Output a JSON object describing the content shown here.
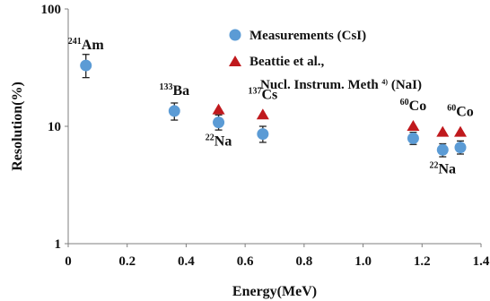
{
  "chart_data": {
    "type": "scatter",
    "title": "",
    "xlabel": "Energy(MeV)",
    "ylabel": "Resolution(%)",
    "xlim": [
      0,
      1.4
    ],
    "ylim": [
      1,
      100
    ],
    "y_scale": "log",
    "grid": false,
    "legend_position": "top-right",
    "x_ticks": [
      "0",
      "0.2",
      "0.4",
      "0.6",
      "0.8",
      "1.0",
      "1.2",
      "1.4"
    ],
    "y_ticks": [
      "1",
      "10",
      "100"
    ],
    "series": [
      {
        "name": "Measurements (CsI)",
        "marker": "circle",
        "color": "#5b9bd5",
        "x": [
          0.06,
          0.36,
          0.51,
          0.66,
          1.17,
          1.27,
          1.33
        ],
        "y": [
          33,
          13.5,
          10.8,
          8.6,
          7.9,
          6.3,
          6.6
        ],
        "yerr_low": [
          26,
          11.3,
          9.3,
          7.3,
          7.0,
          5.5,
          5.8
        ],
        "yerr_high": [
          41,
          15.8,
          12.5,
          10.0,
          8.9,
          7.1,
          7.5
        ]
      },
      {
        "name_lines": [
          "Beattie et al.,",
          "Nucl. Instrum. Meth ",
          "4)",
          " (NaI)"
        ],
        "marker": "triangle",
        "color": "#c0191d",
        "x": [
          0.51,
          0.66,
          1.17,
          1.27,
          1.33
        ],
        "y": [
          13.8,
          12.5,
          10.0,
          8.9,
          8.9
        ]
      }
    ],
    "annotations": [
      {
        "sup": "241",
        "text": "Am",
        "x": 0.06,
        "y": 33,
        "side": "above"
      },
      {
        "sup": "133",
        "text": "Ba",
        "x": 0.36,
        "y": 13.5,
        "side": "above"
      },
      {
        "sup": "22",
        "text": "Na",
        "x": 0.51,
        "y": 10.8,
        "side": "below"
      },
      {
        "sup": "137",
        "text": "Cs",
        "x": 0.66,
        "y": 12.5,
        "side": "above"
      },
      {
        "sup": "60",
        "text": "Co",
        "x": 1.17,
        "y": 10.0,
        "side": "above"
      },
      {
        "sup": "22",
        "text": "Na",
        "x": 1.27,
        "y": 6.3,
        "side": "below"
      },
      {
        "sup": "60",
        "text": "Co",
        "x": 1.33,
        "y": 8.9,
        "side": "above"
      }
    ]
  }
}
